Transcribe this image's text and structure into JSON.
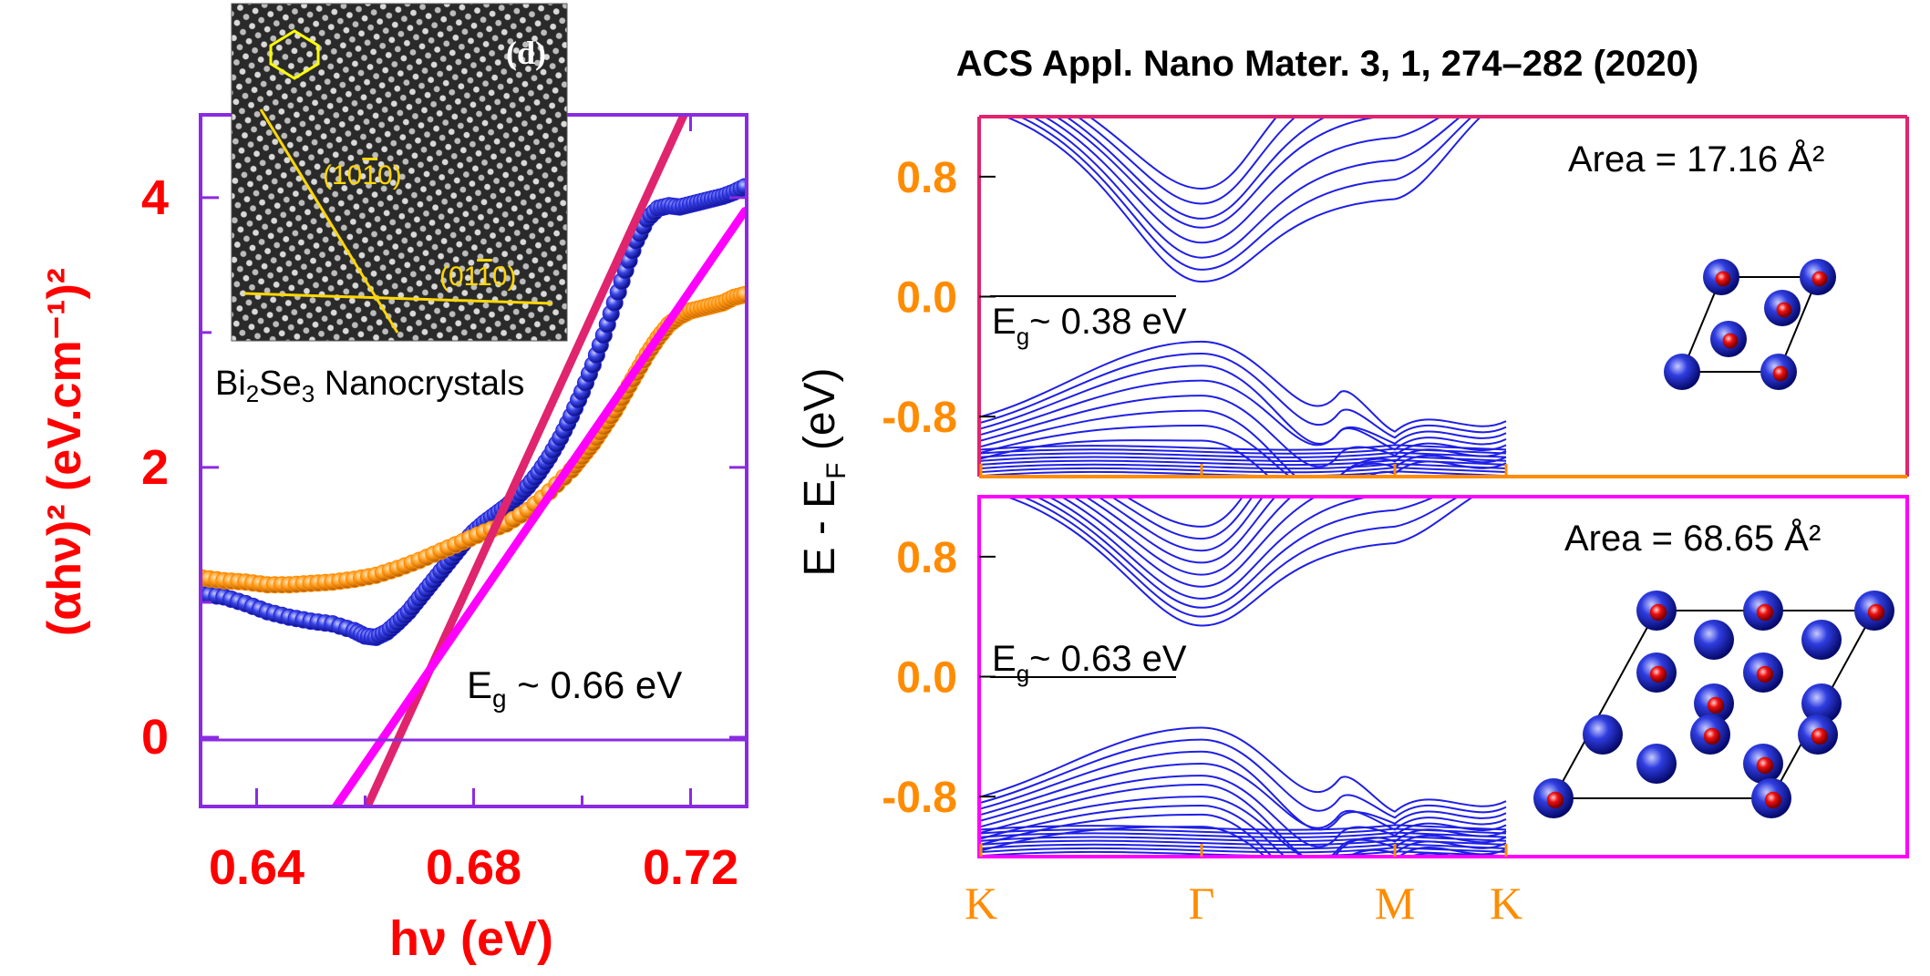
{
  "header": {
    "citation": "ACS Appl. Nano Mater. 3, 1, 274–282 (2020)"
  },
  "colors": {
    "left_frame": "#8a2be2",
    "left_tick_labels": "#ff0000",
    "blue_series": "#2424d8",
    "orange_series": "#ff8c00",
    "fit_line_1": "#e0246e",
    "fit_line_2": "#ff00ff",
    "band_lines": "#1f1fe6",
    "band_tick_labels": "#ff8c00",
    "top_panel_frame_top": "#e0246e",
    "top_panel_frame_bottom": "#ff8c00",
    "bottom_panel_frame": "#ff00ff",
    "atom_red": "#e00000",
    "atom_blue": "#1e2bd8"
  },
  "chart_data": [
    {
      "type": "scatter",
      "title": "",
      "xlabel": "hν (eV)",
      "ylabel": "(αhν)² (eV.cm⁻¹)²",
      "xlim": [
        0.63,
        0.73
      ],
      "ylim": [
        -0.5,
        4.6
      ],
      "xticks": [
        "0.64",
        "0.68",
        "0.72"
      ],
      "yticks": [
        "0",
        "2",
        "4"
      ],
      "annotation": {
        "label": "E",
        "sub": "g",
        "rest": " ~ 0.66 eV"
      },
      "series": [
        {
          "color": "#2424d8",
          "x": [
            0.63,
            0.634,
            0.638,
            0.642,
            0.646,
            0.65,
            0.654,
            0.658,
            0.66,
            0.662,
            0.664,
            0.666,
            0.668,
            0.67,
            0.672,
            0.674,
            0.676,
            0.678,
            0.68,
            0.682,
            0.684,
            0.686,
            0.688,
            0.69,
            0.692,
            0.694,
            0.696,
            0.698,
            0.7,
            0.702,
            0.704,
            0.706,
            0.708,
            0.71,
            0.712,
            0.714,
            0.716,
            0.718,
            0.72,
            0.722,
            0.724,
            0.726,
            0.728,
            0.73
          ],
          "y": [
            1.06,
            1.04,
            0.99,
            0.93,
            0.89,
            0.86,
            0.84,
            0.79,
            0.75,
            0.74,
            0.78,
            0.85,
            0.93,
            1.03,
            1.13,
            1.23,
            1.33,
            1.43,
            1.52,
            1.59,
            1.65,
            1.71,
            1.78,
            1.86,
            1.96,
            2.08,
            2.22,
            2.38,
            2.56,
            2.76,
            2.98,
            3.22,
            3.46,
            3.68,
            3.84,
            3.92,
            3.94,
            3.93,
            3.95,
            3.97,
            3.99,
            4.01,
            4.04,
            4.08
          ]
        },
        {
          "color": "#ff8c00",
          "x": [
            0.63,
            0.634,
            0.638,
            0.642,
            0.646,
            0.65,
            0.654,
            0.658,
            0.662,
            0.666,
            0.67,
            0.674,
            0.678,
            0.682,
            0.686,
            0.69,
            0.694,
            0.698,
            0.7,
            0.702,
            0.704,
            0.706,
            0.708,
            0.71,
            0.712,
            0.714,
            0.716,
            0.718,
            0.72,
            0.722,
            0.724,
            0.726,
            0.728,
            0.73
          ],
          "y": [
            1.18,
            1.16,
            1.15,
            1.13,
            1.13,
            1.14,
            1.15,
            1.17,
            1.2,
            1.25,
            1.31,
            1.38,
            1.45,
            1.52,
            1.58,
            1.68,
            1.82,
            1.98,
            2.08,
            2.18,
            2.3,
            2.42,
            2.56,
            2.7,
            2.84,
            2.96,
            3.06,
            3.12,
            3.16,
            3.18,
            3.2,
            3.22,
            3.26,
            3.28
          ]
        }
      ],
      "fit_lines": [
        {
          "color": "#e0246e",
          "x": [
            0.656,
            0.73
          ],
          "y": [
            -0.9,
            5.6
          ]
        },
        {
          "color": "#ff00ff",
          "x": [
            0.648,
            0.73
          ],
          "y": [
            -0.9,
            3.9
          ]
        }
      ]
    },
    {
      "type": "line",
      "title": "",
      "xlabel": "",
      "ylabel": "E - E_F (eV)",
      "ylim": [
        -1.2,
        1.2
      ],
      "yticks": [
        "0.8",
        "0.0",
        "-0.8"
      ],
      "kpoints": [
        "K",
        "Γ",
        "M",
        "K"
      ],
      "panels": [
        {
          "area_text": "Area = 17.16 Å²",
          "gap": {
            "label": "E",
            "sub": "g",
            "rest": "~ 0.38 eV"
          },
          "conduction_min": [
            0.1,
            0.18,
            0.26,
            0.36,
            0.46,
            0.52,
            0.62,
            0.72
          ],
          "valence_max": [
            -0.3,
            -0.38,
            -0.46,
            -0.56,
            -0.66,
            -0.76,
            -0.86,
            -0.96
          ],
          "atoms": [
            "red",
            "red",
            "blue",
            "red",
            "red",
            "red"
          ]
        },
        {
          "area_text": "Area = 68.65 Å²",
          "gap": {
            "label": "E",
            "sub": "g",
            "rest": "~ 0.63 eV"
          },
          "conduction_min": [
            0.34,
            0.4,
            0.46,
            0.52,
            0.6,
            0.68,
            0.76,
            0.84,
            0.92,
            1.0
          ],
          "valence_max": [
            -0.34,
            -0.42,
            -0.5,
            -0.58,
            -0.66,
            -0.72,
            -0.8,
            -0.86,
            -0.92,
            -1.0
          ],
          "atoms": [
            "red",
            "red",
            "red",
            "blue",
            "blue",
            "red",
            "red",
            "red",
            "blue",
            "blue",
            "red",
            "red",
            "blue",
            "red",
            "red",
            "red"
          ]
        }
      ]
    }
  ],
  "inset": {
    "panel_label": "(d)",
    "plane_1": "(10",
    "plane_1_bar": "1",
    "plane_1_end": "0)",
    "plane_2": "(01",
    "plane_2_bar": "1",
    "plane_2_end": "0)",
    "caption_pre": "Bi",
    "caption_sub1": "2",
    "caption_mid": "Se",
    "caption_sub2": "3",
    "caption_post": " Nanocrystals"
  }
}
